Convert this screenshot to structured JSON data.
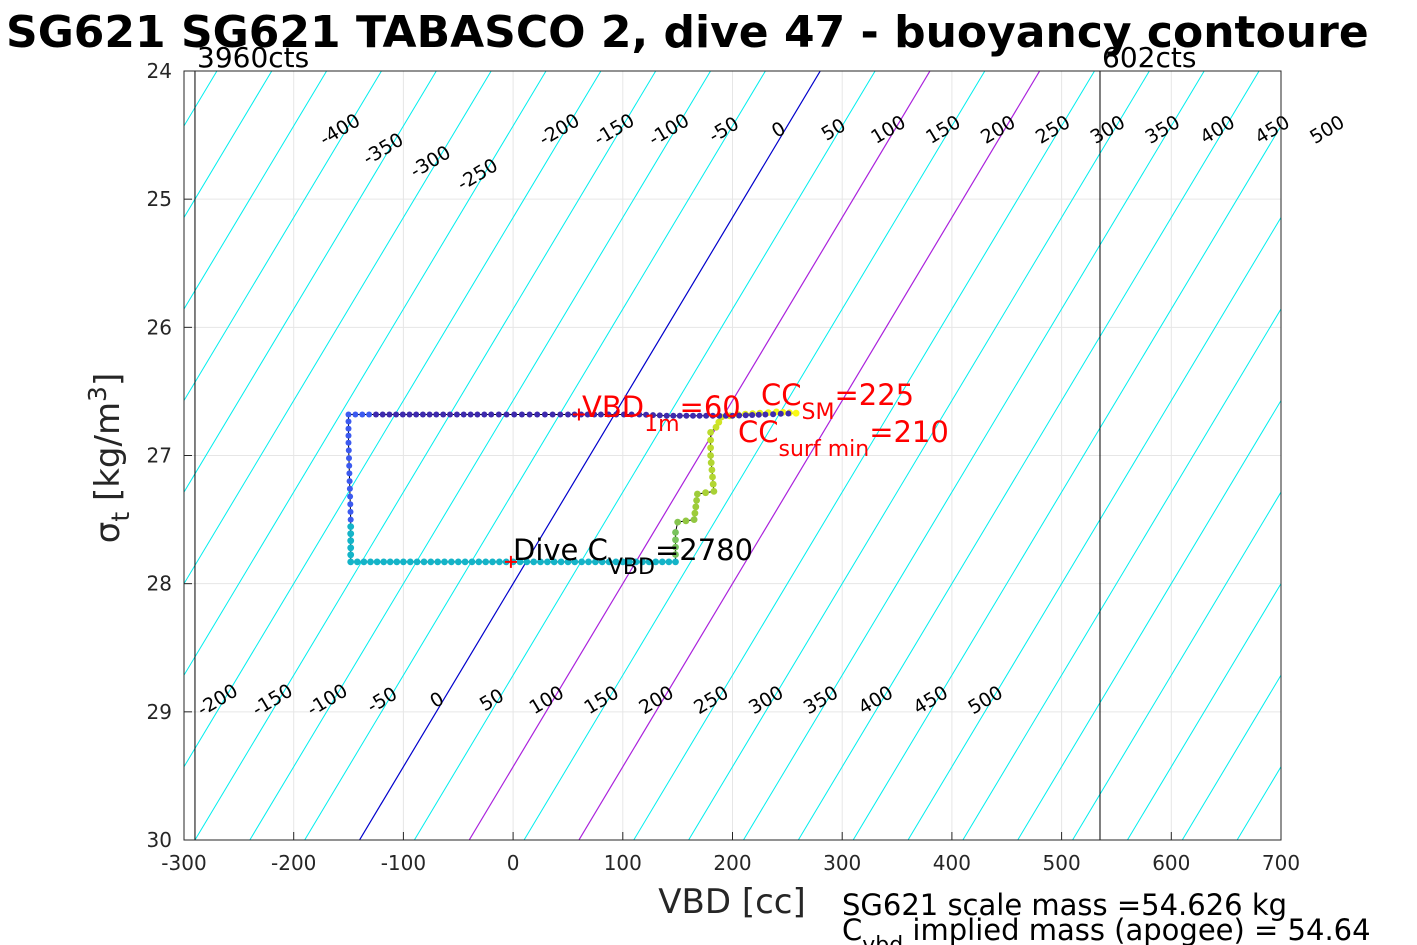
{
  "chart_data": {
    "type": "line",
    "title": "SG621 SG621 TABASCO 2, dive 47 - buoyancy contoure",
    "xlabel": "VBD [cc]",
    "ylabel": "σt [kg/m3]",
    "xlim": [
      -300,
      700
    ],
    "ylim": [
      24,
      30
    ],
    "y_reversed": true,
    "grid": true,
    "xticks": [
      "-300",
      "-200",
      "-100",
      "0",
      "100",
      "200",
      "300",
      "400",
      "500",
      "600",
      "700"
    ],
    "yticks": [
      "24",
      "25",
      "26",
      "27",
      "28",
      "29",
      "30"
    ],
    "vbd_limit_lines": [
      {
        "label": "3960cts",
        "x": -290
      },
      {
        "label": "602cts",
        "x": 535
      }
    ],
    "contour_lines": {
      "top_labels": [
        "-400",
        "-350",
        "-300",
        "-250",
        "-200",
        "-150",
        "-100",
        "-50",
        "0",
        "50",
        "100",
        "150",
        "200",
        "250",
        "300",
        "350",
        "400",
        "450",
        "500"
      ],
      "bottom_labels": [
        "-200",
        "-150",
        "-100",
        "-50",
        "0",
        "50",
        "100",
        "150",
        "200",
        "250",
        "300",
        "350",
        "400",
        "450",
        "500"
      ],
      "zero_color": "#0000cc",
      "highlight_color": "#aa22dd",
      "highlight_values": [
        100,
        200
      ],
      "other_color": "#00eeee"
    },
    "series": [
      {
        "points": [
          [
            258,
            26.67
          ],
          [
            240,
            26.66
          ],
          [
            225,
            26.67
          ],
          [
            205,
            26.68
          ],
          [
            190,
            26.7
          ],
          [
            185,
            26.78
          ],
          [
            180,
            26.82
          ],
          [
            180,
            27.0
          ],
          [
            183,
            27.28
          ],
          [
            168,
            27.3
          ],
          [
            165,
            27.5
          ],
          [
            150,
            27.52
          ],
          [
            148,
            27.6
          ],
          [
            148,
            27.83
          ],
          [
            100,
            27.83
          ],
          [
            50,
            27.83
          ],
          [
            0,
            27.83
          ],
          [
            -50,
            27.83
          ],
          [
            -100,
            27.83
          ],
          [
            -148,
            27.83
          ],
          [
            -148,
            27.5
          ],
          [
            -149,
            27.2
          ],
          [
            -150,
            26.9
          ],
          [
            -150,
            26.68
          ],
          [
            -125,
            26.68
          ],
          [
            -70,
            26.68
          ],
          [
            -20,
            26.68
          ],
          [
            15,
            26.68
          ],
          [
            50,
            26.68
          ],
          [
            80,
            26.68
          ],
          [
            115,
            26.68
          ],
          [
            140,
            26.69
          ],
          [
            170,
            26.69
          ],
          [
            200,
            26.69
          ],
          [
            230,
            26.68
          ],
          [
            258,
            26.67
          ]
        ]
      }
    ],
    "markers": [
      {
        "label": "VBD 1m = 60",
        "x": 60,
        "y": 26.68
      },
      {
        "label": "Dive C VBD = 2780",
        "x": -2,
        "y": 27.83
      }
    ],
    "annotations": [
      {
        "main": "VBD",
        "sub": "1m",
        "rest": "=60",
        "color": "#ff0000"
      },
      {
        "main": "CC",
        "sub": "SM",
        "rest": "=225",
        "color": "#ff0000"
      },
      {
        "main": "CC",
        "sub": "surf min",
        "rest": "=210",
        "color": "#ff0000"
      },
      {
        "main": "Dive C",
        "sub": "VBD",
        "rest": "=2780",
        "color": "#000000"
      }
    ],
    "footer": [
      "SG621 scale mass =54.626 kg",
      {
        "main": "C",
        "sub": "vbd",
        "rest": " implied mass (apogee) = 54.64"
      }
    ]
  }
}
